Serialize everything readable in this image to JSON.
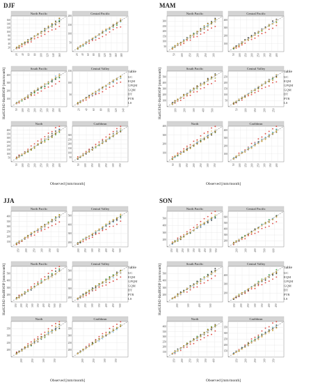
{
  "season_labels": [
    "DJF",
    "MAM",
    "JJA",
    "SON"
  ],
  "panel_titles": [
    [
      "North Pacific",
      "Central Pacific",
      "South Pacific",
      "Central Valley",
      "North",
      "Caribbean"
    ],
    [
      "North Pacific",
      "Central Pacific",
      "South Pacific",
      "Central Valley",
      "North",
      "Caribbean"
    ],
    [
      "North Pacific",
      "Central Valley",
      "North Pacific",
      "Central Valley",
      "North",
      "Caribbean"
    ],
    [
      "North Pacific",
      "Central Pacific",
      "South Pacific",
      "Central Valley",
      "North",
      "Caribbean"
    ]
  ],
  "axis_labels": {
    "x": "Observed [mm/month]",
    "y": [
      "HadGEM2-HadRM3P [mm/month]",
      "HadGEM2-HadRM3P [mm/month]",
      "HadGEM2-HadRM3P [mm/month]",
      "HadGEM2-HadRM3P [mm/month]"
    ]
  },
  "legend": {
    "title": "variable",
    "items": [
      {
        "label": "UC",
        "color": "#d9342b"
      },
      {
        "label": "EQM",
        "color": "#222222"
      },
      {
        "label": "GPQM",
        "color": "#2e9e3a"
      },
      {
        "label": "GQM",
        "color": "#7fbfe8"
      },
      {
        "label": "DT",
        "color": "#4d4d4d"
      },
      {
        "label": "PTR",
        "color": "#b8860b"
      },
      {
        "label": "LS",
        "color": "#e8c07a"
      }
    ]
  },
  "chart_data": [
    {
      "type": "scatter",
      "title": "DJF",
      "panels": [
        {
          "title": "North Pacific",
          "xlim": [
            0,
            180
          ],
          "ylim": [
            0,
            180
          ],
          "x_ticks": [
            "20",
            "40",
            "60",
            "80",
            "100",
            "120",
            "140",
            "160"
          ],
          "y_ticks": [
            "20",
            "40",
            "60",
            "80",
            "100",
            "120",
            "140",
            "160"
          ]
        },
        {
          "title": "Central Pacific",
          "xlim": [
            0,
            200
          ],
          "ylim": [
            0,
            200
          ],
          "x_ticks": [
            "20",
            "40",
            "60",
            "80",
            "100",
            "120",
            "140",
            "160",
            "180"
          ],
          "y_ticks": [
            "50",
            "100",
            "150",
            "200"
          ]
        },
        {
          "title": "South Pacific",
          "xlim": [
            0,
            450
          ],
          "ylim": [
            0,
            450
          ],
          "x_ticks": [
            "50",
            "100",
            "150",
            "200",
            "250",
            "300",
            "350",
            "400"
          ],
          "y_ticks": [
            "100",
            "200",
            "300",
            "400"
          ]
        },
        {
          "title": "Central Valley",
          "xlim": [
            0,
            150
          ],
          "ylim": [
            0,
            150
          ],
          "x_ticks": [
            "20",
            "40",
            "60",
            "80",
            "100",
            "120",
            "140"
          ],
          "y_ticks": [
            "50",
            "100",
            "150"
          ]
        },
        {
          "title": "North",
          "xlim": [
            0,
            450
          ],
          "ylim": [
            0,
            450
          ],
          "x_ticks": [
            "50",
            "100",
            "150",
            "200",
            "250",
            "300",
            "350",
            "400"
          ],
          "y_ticks": [
            "50",
            "100",
            "150",
            "200",
            "250",
            "300",
            "350",
            "400"
          ]
        },
        {
          "title": "Caribbean",
          "xlim": [
            0,
            400
          ],
          "ylim": [
            0,
            400
          ],
          "x_ticks": [
            "50",
            "100",
            "150",
            "200",
            "250",
            "300",
            "350"
          ],
          "y_ticks": [
            "50",
            "100",
            "150",
            "200",
            "250",
            "300"
          ]
        }
      ]
    },
    {
      "type": "scatter",
      "title": "MAM",
      "panels": [
        {
          "title": "North Pacific",
          "xlim": [
            0,
            350
          ],
          "ylim": [
            0,
            350
          ],
          "x_ticks": [
            "50",
            "100",
            "150",
            "200",
            "250",
            "300"
          ],
          "y_ticks": [
            "50",
            "100",
            "150",
            "200",
            "250",
            "300"
          ]
        },
        {
          "title": "Central Pacific",
          "xlim": [
            0,
            450
          ],
          "ylim": [
            0,
            450
          ],
          "x_ticks": [
            "50",
            "100",
            "150",
            "200",
            "250",
            "300",
            "350",
            "400"
          ],
          "y_ticks": [
            "100",
            "200",
            "300",
            "400"
          ]
        },
        {
          "title": "South Pacific",
          "xlim": [
            0,
            600
          ],
          "ylim": [
            0,
            600
          ],
          "x_ticks": [
            "100",
            "200",
            "300",
            "400",
            "500"
          ],
          "y_ticks": [
            "100",
            "200",
            "300",
            "400",
            "500"
          ]
        },
        {
          "title": "Central Valley",
          "xlim": [
            0,
            300
          ],
          "ylim": [
            0,
            300
          ],
          "x_ticks": [
            "50",
            "100",
            "150",
            "200",
            "250"
          ],
          "y_ticks": [
            "50",
            "100",
            "150",
            "200",
            "250"
          ]
        },
        {
          "title": "North",
          "xlim": [
            0,
            400
          ],
          "ylim": [
            0,
            400
          ],
          "x_ticks": [
            "50",
            "100",
            "150",
            "200",
            "250",
            "300",
            "350"
          ],
          "y_ticks": [
            "100",
            "200",
            "300",
            "400"
          ]
        },
        {
          "title": "Caribbean",
          "xlim": [
            0,
            450
          ],
          "ylim": [
            0,
            450
          ],
          "x_ticks": [
            "50",
            "100",
            "150",
            "200",
            "250",
            "300",
            "350",
            "400"
          ],
          "y_ticks": [
            "100",
            "200",
            "300",
            "400"
          ]
        }
      ]
    },
    {
      "type": "scatter",
      "title": "JJA",
      "panels": [
        {
          "title": "North Pacific",
          "xlim": [
            100,
            450
          ],
          "ylim": [
            100,
            450
          ],
          "x_ticks": [
            "150",
            "200",
            "250",
            "300",
            "350",
            "400"
          ],
          "y_ticks": [
            "150",
            "200",
            "250",
            "300",
            "350",
            "400"
          ]
        },
        {
          "title": "Central Valley",
          "xlim": [
            150,
            550
          ],
          "ylim": [
            150,
            550
          ],
          "x_ticks": [
            "200",
            "250",
            "300",
            "350",
            "400",
            "450",
            "500"
          ],
          "y_ticks": [
            "200",
            "300",
            "400",
            "500"
          ]
        },
        {
          "title": "North Pacific",
          "xlim": [
            100,
            600
          ],
          "ylim": [
            100,
            600
          ],
          "x_ticks": [
            "150",
            "200",
            "250",
            "300",
            "350",
            "400",
            "450",
            "500",
            "550"
          ],
          "y_ticks": [
            "200",
            "300",
            "400",
            "500"
          ]
        },
        {
          "title": "Central Valley",
          "xlim": [
            150,
            550
          ],
          "ylim": [
            150,
            550
          ],
          "x_ticks": [
            "200",
            "250",
            "300",
            "350",
            "400",
            "450",
            "500"
          ],
          "y_ticks": [
            "200",
            "300",
            "400",
            "500"
          ]
        },
        {
          "title": "North",
          "xlim": [
            150,
            400
          ],
          "ylim": [
            150,
            400
          ],
          "x_ticks": [
            "200",
            "250",
            "300",
            "350"
          ],
          "y_ticks": [
            "200",
            "250",
            "300",
            "350"
          ]
        },
        {
          "title": "Caribbean",
          "xlim": [
            150,
            400
          ],
          "ylim": [
            150,
            400
          ],
          "x_ticks": [
            "200",
            "250",
            "300",
            "350"
          ],
          "y_ticks": [
            "200",
            "250",
            "300",
            "350"
          ]
        }
      ]
    },
    {
      "type": "scatter",
      "title": "SON",
      "panels": [
        {
          "title": "North Pacific",
          "xlim": [
            100,
            600
          ],
          "ylim": [
            100,
            600
          ],
          "x_ticks": [
            "150",
            "200",
            "250",
            "300",
            "350",
            "400",
            "450",
            "500",
            "550"
          ],
          "y_ticks": [
            "200",
            "300",
            "400",
            "500"
          ]
        },
        {
          "title": "Central Pacific",
          "xlim": [
            100,
            700
          ],
          "ylim": [
            100,
            700
          ],
          "x_ticks": [
            "200",
            "300",
            "400",
            "500",
            "600"
          ],
          "y_ticks": [
            "200",
            "300",
            "400",
            "500",
            "600"
          ]
        },
        {
          "title": "South Pacific",
          "xlim": [
            100,
            600
          ],
          "ylim": [
            100,
            600
          ],
          "x_ticks": [
            "200",
            "300",
            "400",
            "500"
          ],
          "y_ticks": [
            "200",
            "300",
            "400",
            "500"
          ]
        },
        {
          "title": "Central Valley",
          "xlim": [
            100,
            500
          ],
          "ylim": [
            100,
            500
          ],
          "x_ticks": [
            "150",
            "200",
            "250",
            "300",
            "350",
            "400",
            "450"
          ],
          "y_ticks": [
            "200",
            "300",
            "400"
          ]
        },
        {
          "title": "North",
          "xlim": [
            100,
            450
          ],
          "ylim": [
            100,
            450
          ],
          "x_ticks": [
            "150",
            "200",
            "250",
            "300",
            "350",
            "400"
          ],
          "y_ticks": [
            "150",
            "200",
            "250",
            "300",
            "350",
            "400"
          ]
        },
        {
          "title": "Caribbean",
          "xlim": [
            100,
            400
          ],
          "ylim": [
            100,
            400
          ],
          "x_ticks": [
            "150",
            "200",
            "250",
            "300",
            "350"
          ],
          "y_ticks": [
            "150",
            "200",
            "250",
            "300",
            "350"
          ]
        }
      ]
    }
  ]
}
